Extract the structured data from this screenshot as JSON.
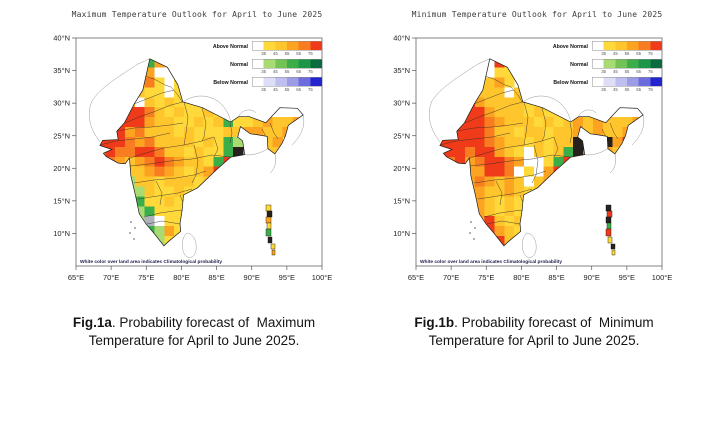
{
  "panels": [
    {
      "id": "max",
      "title": "Maximum Temperature Outlook for April to June 2025",
      "caption_bold": "Fig.1a",
      "caption_rest": ". Probability forecast of  Maximum",
      "caption_line2": "Temperature for April to June 2025.",
      "note": "White color over land area indicates Climatological probability",
      "grid": [
        ".........................",
        ".........................",
        ".....yoGoy...............",
        "....yyOowwy..............",
        "....yYyOywy..............",
        "...yYYYyywy..............",
        "...YOowYyYyyy............",
        "..yyyrrOYyYyyYy..........",
        "..yrrrroYYyyYyYGyyYoYYoy.",
        "..rrroOYYYyYyyyYYooYYoY..",
        "..rrrOoOYYYYyYyGg..Yo....",
        "..OrOOrrOYYyYyyGd..YY....",
        "...OoYoOrOoYYyGrd........",
        ".....YYoOoYyYoro.........",
        ".....gYYyYYYyY...........",
        ".....ggYyyYyy............",
        ".....gGyyYyy.............",
        "......gGyyyy.............",
        "......gkwyy..............",
        ".......Ggoy..............",
        ".......GgyY..............",
        "........Gy...............",
        "........................."
      ],
      "islands": [
        [
          232,
          172,
          5,
          6,
          "y"
        ],
        [
          233,
          178,
          5,
          6,
          "d"
        ],
        [
          232,
          184,
          5,
          6,
          "o"
        ],
        [
          233,
          190,
          4,
          6,
          "y"
        ],
        [
          232,
          196,
          5,
          7,
          "G"
        ],
        [
          234,
          204,
          4,
          6,
          "d"
        ],
        [
          237,
          211,
          4,
          5,
          "y"
        ],
        [
          238,
          217,
          3,
          5,
          "o"
        ],
        [
          96,
          188,
          2,
          2,
          "k"
        ],
        [
          100,
          194,
          2,
          2,
          "k"
        ],
        [
          95,
          199,
          2,
          2,
          "k"
        ],
        [
          99,
          205,
          2,
          2,
          "k"
        ]
      ]
    },
    {
      "id": "min",
      "title": "Minimum Temperature Outlook for April to June 2025",
      "caption_bold": "Fig.1b",
      "caption_rest": ". Probability forecast of  Minimum",
      "caption_line2": "Temperature for April to June 2025.",
      "note": "White color over land area indicates Climatological probability",
      "grid": [
        ".........................",
        ".........................",
        ".....yYwry...............",
        "....yYYwyy...............",
        "....yYYYoy...............",
        "...oooYYYwYy.............",
        "...rrroYYYYyy............",
        "..rrrrroYYYyYyy..........",
        "..rrrrrOoYYYyYyYoYoYYYoo.",
        "..rrrrrOYYyYYyYYoYoYYorr.",
        "..rrrrrOoYYyYyYYd..dor...",
        "..rrrOrroYywYyYGd..oY....",
        "...OroOrrOowwyGrd........",
        ".....oorrOwyworo.........",
        ".....oOoYoYwYo...........",
        ".....ooYYoYyY............",
        ".....ooYyYyy.............",
        "......oYyYyy.............",
        "......orYyY..............",
        ".......roYy..............",
        ".......orYY..............",
        "........ro...............",
        "........................."
      ],
      "islands": [
        [
          232,
          172,
          5,
          6,
          "d"
        ],
        [
          233,
          178,
          5,
          6,
          "r"
        ],
        [
          232,
          184,
          5,
          6,
          "d"
        ],
        [
          233,
          190,
          4,
          6,
          "G"
        ],
        [
          232,
          196,
          5,
          7,
          "r"
        ],
        [
          234,
          204,
          4,
          6,
          "y"
        ],
        [
          237,
          211,
          4,
          5,
          "d"
        ],
        [
          238,
          217,
          3,
          5,
          "y"
        ],
        [
          96,
          188,
          2,
          2,
          "k"
        ],
        [
          100,
          194,
          2,
          2,
          "k"
        ],
        [
          95,
          199,
          2,
          2,
          "k"
        ],
        [
          99,
          205,
          2,
          2,
          "k"
        ]
      ]
    }
  ],
  "axes": {
    "lat_labels": [
      "40°N",
      "35°N",
      "30°N",
      "25°N",
      "20°N",
      "15°N",
      "10°N"
    ],
    "lon_labels": [
      "65°E",
      "70°E",
      "75°E",
      "80°E",
      "85°E",
      "90°E",
      "95°E",
      "100°E"
    ]
  },
  "legend": {
    "rows": [
      {
        "label": "Above Normal",
        "colors": [
          "#FFFFFF",
          "#FFD83A",
          "#FEC52C",
          "#FCA321",
          "#F87D20",
          "#EF3B19"
        ]
      },
      {
        "label": "Normal",
        "colors": [
          "#FFFFFF",
          "#A8DC72",
          "#71C356",
          "#3BAE49",
          "#1D9648",
          "#0A6B3F"
        ]
      },
      {
        "label": "Below Normal",
        "colors": [
          "#FFFFFF",
          "#DEDEF6",
          "#BEBEEF",
          "#9C9CE6",
          "#6C6CDC",
          "#2424CF"
        ]
      }
    ],
    "ticks": [
      "35",
      "45",
      "55",
      "65",
      "75"
    ]
  },
  "palette": {
    "y": "#FFD83A",
    "Y": "#FEC52C",
    "o": "#FCA321",
    "O": "#F87D20",
    "r": "#EF3B19",
    "g": "#A8DC72",
    "G": "#3BAE49",
    "w": "#FFFFFF",
    "k": "#AEB2BC",
    "d": "#26211D"
  }
}
